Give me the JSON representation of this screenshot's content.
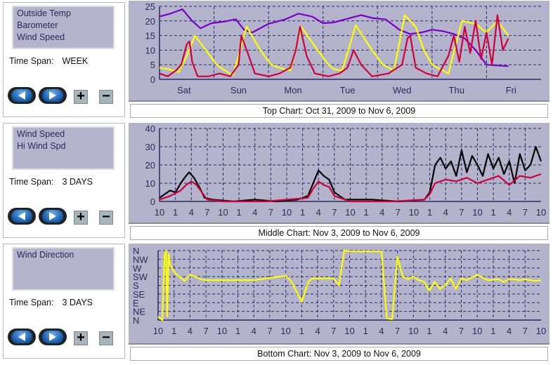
{
  "panels": [
    {
      "series": [
        "Outside Temp",
        "Barometer",
        "Wind Speed"
      ],
      "time_span_label": "Time Span:",
      "time_span": "WEEK"
    },
    {
      "series": [
        "Wind Speed",
        "Hi Wind Spd"
      ],
      "time_span_label": "Time Span:",
      "time_span": "3 DAYS"
    },
    {
      "series": [
        "Wind Direction"
      ],
      "time_span_label": "Time Span:",
      "time_span": "3 DAYS"
    }
  ],
  "captions": {
    "top": "Top Chart:  Oct 31, 2009  to  Nov 6, 2009",
    "middle": "Middle Chart:  Nov 3, 2009  to  Nov 6, 2009",
    "bottom": "Bottom Chart:  Nov 3, 2009  to  Nov 6, 2009"
  },
  "chart_data": [
    {
      "type": "line",
      "name": "top",
      "ylim": [
        0,
        25
      ],
      "xlim": [
        0,
        7
      ],
      "yticks": [
        "0",
        "5",
        "10",
        "15",
        "20",
        "25"
      ],
      "xticks": [
        "Sat",
        "Sun",
        "Mon",
        "Tue",
        "Wed",
        "Thu",
        "Fri"
      ],
      "series": [
        {
          "name": "Barometer",
          "color": "#7a00c8",
          "x": [
            0,
            0.2,
            0.42,
            0.6,
            0.75,
            0.95,
            1.2,
            1.4,
            1.55,
            1.7,
            2.0,
            2.3,
            2.55,
            2.8,
            3.0,
            3.2,
            3.5,
            3.7,
            3.9,
            4.15,
            4.4,
            4.6,
            4.8,
            5.0,
            5.2,
            5.4,
            5.6,
            5.8,
            6.0,
            6.4
          ],
          "y": [
            21.5,
            22.5,
            24,
            20,
            17.5,
            19.2,
            19.8,
            20.6,
            17,
            16,
            19,
            20.5,
            22.5,
            21.5,
            19.2,
            19.5,
            21,
            22,
            21,
            20.5,
            17,
            15.5,
            16,
            17,
            16.5,
            15.5,
            14,
            10,
            5,
            4.5
          ]
        },
        {
          "name": "Outside Temp",
          "color": "#ffff00",
          "x": [
            0,
            0.15,
            0.35,
            0.5,
            0.65,
            0.85,
            1.05,
            1.2,
            1.35,
            1.6,
            1.85,
            2.05,
            2.2,
            2.4,
            2.6,
            2.9,
            3.1,
            3.2,
            3.35,
            3.6,
            3.9,
            4.1,
            4.3,
            4.5,
            4.7,
            4.85,
            5.0,
            5.3,
            5.55,
            5.8,
            6.0,
            6.2,
            6.4
          ],
          "y": [
            4,
            3.5,
            2.5,
            8,
            15,
            10,
            5,
            3,
            1.5,
            18,
            10,
            5,
            4,
            3,
            18,
            10,
            5,
            3.5,
            3,
            18.5,
            10,
            5,
            3,
            22,
            18,
            10,
            5,
            2,
            20,
            19,
            16,
            20,
            15
          ]
        },
        {
          "name": "Wind Speed",
          "color": "#d0003c",
          "x": [
            0,
            0.15,
            0.3,
            0.4,
            0.5,
            0.55,
            0.6,
            0.7,
            0.9,
            1.1,
            1.3,
            1.45,
            1.5,
            1.6,
            1.75,
            2.0,
            2.2,
            2.4,
            2.5,
            2.58,
            2.7,
            2.85,
            3.1,
            3.3,
            3.45,
            3.56,
            3.7,
            3.9,
            4.2,
            4.45,
            4.55,
            4.6,
            4.7,
            4.9,
            5.1,
            5.3,
            5.4,
            5.5,
            5.6,
            5.7,
            5.8,
            5.9,
            6.0,
            6.1,
            6.2,
            6.3,
            6.4
          ],
          "y": [
            2,
            1,
            3,
            5,
            12,
            13,
            6,
            1,
            1,
            2,
            1,
            5,
            15,
            10,
            2,
            1,
            2,
            4,
            10,
            18,
            8,
            2,
            1,
            2,
            4,
            10,
            5,
            1,
            2,
            5,
            14,
            15,
            4,
            2,
            1,
            8,
            15,
            6,
            18,
            9,
            20,
            7,
            16,
            5,
            22,
            10,
            14
          ]
        }
      ]
    },
    {
      "type": "line",
      "name": "middle",
      "ylim": [
        0,
        40
      ],
      "xlim": [
        0,
        72
      ],
      "yticks": [
        "0",
        "10",
        "20",
        "30",
        "40"
      ],
      "xticks": [
        "10",
        "1",
        "4",
        "7",
        "10",
        "1",
        "4",
        "7",
        "10",
        "1",
        "4",
        "7",
        "10",
        "1",
        "4",
        "7",
        "10",
        "1",
        "4",
        "7",
        "10",
        "1",
        "4",
        "7",
        "10"
      ],
      "series": [
        {
          "name": "Hi Wind Spd",
          "color": "#000000",
          "x": [
            0,
            1,
            2,
            3,
            4,
            5,
            5.6,
            6.5,
            7.5,
            8.5,
            10,
            14,
            18,
            22,
            26,
            28,
            29,
            30,
            31,
            32,
            33,
            35,
            40,
            45,
            50,
            51,
            52,
            53,
            54,
            55,
            56,
            57,
            58,
            59,
            60,
            61,
            62,
            63,
            64,
            65,
            66,
            67,
            68,
            69,
            70,
            71,
            72
          ],
          "y": [
            2,
            4,
            6,
            5,
            10,
            14,
            16,
            13,
            8,
            2,
            1,
            0,
            1,
            0,
            1,
            3,
            10,
            17,
            14,
            12,
            5,
            1,
            1,
            0,
            1,
            5,
            20,
            24,
            18,
            22,
            14,
            28,
            16,
            25,
            20,
            14,
            26,
            18,
            24,
            15,
            22,
            10,
            26,
            17,
            20,
            30,
            22
          ]
        },
        {
          "name": "Wind Speed",
          "color": "#d0003c",
          "x": [
            0,
            2,
            4,
            5,
            6,
            7,
            8,
            9,
            12,
            20,
            28,
            29,
            30,
            31,
            32,
            33,
            36,
            44,
            50,
            51,
            52,
            54,
            56,
            58,
            60,
            62,
            64,
            66,
            68,
            70,
            72
          ],
          "y": [
            1,
            3,
            6,
            9,
            11,
            9,
            5,
            1,
            0,
            0,
            2,
            7,
            11,
            9,
            8,
            3,
            0,
            0,
            1,
            4,
            10,
            12,
            11,
            13,
            10,
            12,
            14,
            9,
            14,
            13,
            15
          ]
        }
      ]
    },
    {
      "type": "line",
      "name": "bottom",
      "ylim": [
        0,
        8
      ],
      "xlim": [
        0,
        72
      ],
      "yticks": [
        "N",
        "NE",
        "E",
        "SE",
        "S",
        "SW",
        "W",
        "NW",
        "N"
      ],
      "xticks": [
        "10",
        "1",
        "4",
        "7",
        "10",
        "1",
        "4",
        "7",
        "10",
        "1",
        "4",
        "7",
        "10",
        "1",
        "4",
        "7",
        "10",
        "1",
        "4",
        "7",
        "10",
        "1",
        "4",
        "7",
        "10"
      ],
      "series": [
        {
          "name": "Wind Direction",
          "color": "#ffff00",
          "x": [
            0,
            0.8,
            1.2,
            1.5,
            1.7,
            2.0,
            2.2,
            2.6,
            3.2,
            4,
            5,
            6,
            7,
            8,
            9,
            10,
            13,
            18,
            24,
            25,
            27,
            28,
            28.4,
            29,
            30,
            32,
            33,
            34,
            35,
            36,
            37,
            38,
            40,
            41,
            42,
            43,
            44,
            45,
            46,
            47,
            48,
            49,
            50,
            51,
            52,
            53,
            54,
            55,
            56,
            57,
            58,
            60,
            62,
            64,
            65,
            66,
            67,
            68,
            69,
            70,
            71,
            72
          ],
          "y": [
            0.4,
            0,
            7.4,
            8,
            0.4,
            7.6,
            6.5,
            6,
            5.4,
            5,
            4.5,
            5.2,
            5,
            4.7,
            4.6,
            4.6,
            4.6,
            4.6,
            5.1,
            4.5,
            2.1,
            4,
            4.5,
            4.8,
            4.8,
            4.8,
            4.8,
            4,
            8,
            7.9,
            7.9,
            7.9,
            7.9,
            7.9,
            7.9,
            0.2,
            0.1,
            7.3,
            5,
            4.7,
            5,
            4.6,
            4.4,
            3.4,
            4.4,
            3.6,
            4,
            4.8,
            3.6,
            4.8,
            4.6,
            5.2,
            4.6,
            4.7,
            4.4,
            4.7,
            4.7,
            4.6,
            4.7,
            4.6,
            4.5,
            4.6
          ]
        }
      ]
    }
  ]
}
